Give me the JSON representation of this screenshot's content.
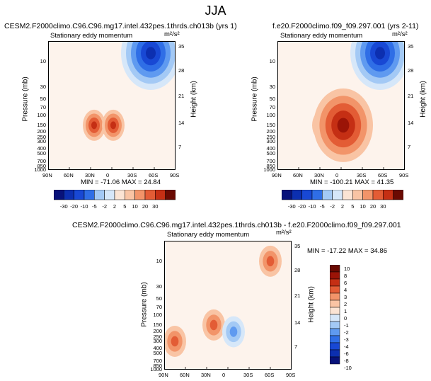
{
  "main_title": "JJA",
  "colors": {
    "scale": [
      "#08127a",
      "#0c2fb0",
      "#1848d4",
      "#2f6ee6",
      "#5f9af0",
      "#a3c9f5",
      "#d6e7f9",
      "#fbe4d4",
      "#f9c4a4",
      "#f29469",
      "#e35c35",
      "#c52f14",
      "#9b1407",
      "#6a0a02"
    ],
    "pos_strong": "#c52f14",
    "pos_weak": "#fbe4d4",
    "neg_strong": "#0c2fb0",
    "neg_weak": "#d6e7f9",
    "background": "#fdf3ec"
  },
  "chart_data": [
    {
      "type": "contour",
      "panel": "top-left",
      "title": "CESM2.F2000climo.C96.C96.mg17.intel.432pes.1thrds.ch013b (yrs 1)",
      "subtitle": "Stationary eddy momentum",
      "units": "m²/s²",
      "xlabel": "",
      "ylabel": "Pressure (mb)",
      "ylabel_right": "Height (km)",
      "x_ticks": [
        "90N",
        "60N",
        "30N",
        "0",
        "30S",
        "60S",
        "90S"
      ],
      "y_ticks": [
        "10",
        "30",
        "50",
        "70",
        "100",
        "150",
        "200",
        "250",
        "300",
        "400",
        "500",
        "700",
        "850",
        "1000"
      ],
      "height_ticks": [
        "35",
        "28",
        "21",
        "14",
        "7"
      ],
      "min": -71.06,
      "max": 24.84,
      "min_max_text": "MIN = -71.06   MAX = 24.84",
      "features": [
        {
          "lat": 25,
          "p": 150,
          "sign": "positive",
          "level": 20
        },
        {
          "lat": -2,
          "p": 150,
          "sign": "positive",
          "level": 20
        },
        {
          "lat": -55,
          "p": 7,
          "sign": "negative",
          "level": -30
        }
      ],
      "colorbar_labels": [
        "-30",
        "-20",
        "-10",
        "-5",
        "-2",
        "2",
        "5",
        "10",
        "20",
        "30"
      ]
    },
    {
      "type": "contour",
      "panel": "top-right",
      "title": "f.e20.F2000climo.f09_f09.297.001 (yrs 2-11)",
      "subtitle": "Stationary eddy momentum",
      "units": "m²/s²",
      "xlabel": "",
      "ylabel": "Pressure (mb)",
      "ylabel_right": "Height (km)",
      "x_ticks": [
        "90N",
        "60N",
        "30N",
        "0",
        "30S",
        "60S",
        "90S"
      ],
      "y_ticks": [
        "10",
        "30",
        "50",
        "70",
        "100",
        "150",
        "200",
        "250",
        "300",
        "400",
        "500",
        "700",
        "850",
        "1000"
      ],
      "height_ticks": [
        "35",
        "28",
        "21",
        "14",
        "7"
      ],
      "min": -100.21,
      "max": 41.35,
      "min_max_text": "MIN = -100.21   MAX = 41.35",
      "features": [
        {
          "lat": 25,
          "p": 150,
          "sign": "positive",
          "level": 20
        },
        {
          "lat": -3,
          "p": 150,
          "sign": "positive",
          "level": 30
        },
        {
          "lat": -55,
          "p": 7,
          "sign": "negative",
          "level": -30
        }
      ],
      "colorbar_labels": [
        "-30",
        "-20",
        "-10",
        "-5",
        "-2",
        "2",
        "5",
        "10",
        "20",
        "30"
      ]
    },
    {
      "type": "contour",
      "panel": "bottom-difference",
      "title": "CESM2.F2000climo.C96.C96.mg17.intel.432pes.1thrds.ch013b - f.e20.F2000climo.f09_f09.297.001",
      "subtitle": "Stationary eddy momentum",
      "units": "m²/s²",
      "xlabel": "",
      "ylabel": "Pressure (mb)",
      "ylabel_right": "Height (km)",
      "x_ticks": [
        "90N",
        "60N",
        "30N",
        "0",
        "30S",
        "60S",
        "90S"
      ],
      "y_ticks": [
        "10",
        "30",
        "50",
        "70",
        "100",
        "150",
        "200",
        "250",
        "300",
        "400",
        "500",
        "700",
        "850",
        "1000"
      ],
      "height_ticks": [
        "35",
        "28",
        "21",
        "14",
        "7"
      ],
      "min": -17.22,
      "max": 34.86,
      "min_max_text": "MIN = -17.22   MAX = 34.86",
      "features": [
        {
          "lat": -60,
          "p": 10,
          "sign": "positive",
          "level": 10
        },
        {
          "lat": 20,
          "p": 150,
          "sign": "positive",
          "level": 6
        },
        {
          "lat": -8,
          "p": 200,
          "sign": "negative",
          "level": -6
        },
        {
          "lat": 75,
          "p": 300,
          "sign": "positive",
          "level": 4
        }
      ],
      "colorbar_labels": [
        "10",
        "8",
        "6",
        "4",
        "3",
        "2",
        "1",
        "0",
        "-1",
        "-2",
        "-3",
        "-4",
        "-6",
        "-8",
        "-10"
      ]
    }
  ]
}
